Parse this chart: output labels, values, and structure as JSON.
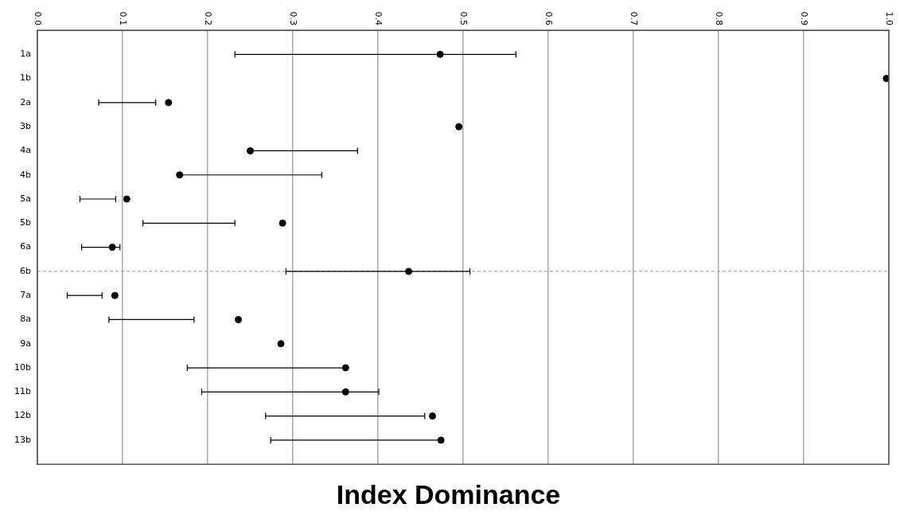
{
  "chart_data": {
    "type": "scatter",
    "title": "Index Dominance",
    "categories": [
      "1a",
      "1b",
      "2a",
      "3b",
      "4a",
      "4b",
      "5a",
      "5b",
      "6a",
      "6b",
      "7a",
      "8a",
      "9a",
      "10b",
      "11b",
      "12b",
      "13b"
    ],
    "series": [
      {
        "color": "#000000",
        "values": [
          0.473,
          0.997,
          0.154,
          0.495,
          0.25,
          0.167,
          0.105,
          0.288,
          0.088,
          0.436,
          0.091,
          0.236,
          0.286,
          0.362,
          0.362,
          0.464,
          0.474
        ],
        "errors": [
          [
            0.232,
            0.562
          ],
          null,
          [
            0.072,
            0.139
          ],
          null,
          [
            0.251,
            0.376
          ],
          [
            0.168,
            0.334
          ],
          [
            0.05,
            0.092
          ],
          [
            0.124,
            0.232
          ],
          [
            0.052,
            0.097
          ],
          [
            0.292,
            0.508
          ],
          [
            0.035,
            0.076
          ],
          [
            0.084,
            0.184
          ],
          null,
          [
            0.176,
            0.362
          ],
          [
            0.193,
            0.401
          ],
          [
            0.268,
            0.455
          ],
          [
            0.274,
            0.474
          ]
        ]
      }
    ],
    "orientation": "horizontal",
    "xlim": [
      0,
      1
    ],
    "xticks": [
      {
        "value": 0,
        "label": "0.0"
      },
      {
        "value": 0.1,
        "label": "0.1"
      },
      {
        "value": 0.2,
        "label": "0.2"
      },
      {
        "value": 0.3,
        "label": "0.3"
      },
      {
        "value": 0.4,
        "label": "0.4"
      },
      {
        "value": 0.5,
        "label": "0.5"
      },
      {
        "value": 0.6,
        "label": "0.6"
      },
      {
        "value": 0.7,
        "label": "0.7"
      },
      {
        "value": 0.8,
        "label": "0.8"
      },
      {
        "value": 0.9,
        "label": "0.9"
      },
      {
        "value": 1,
        "label": "1.0"
      }
    ],
    "ref_lines": [
      {
        "axis": "y",
        "value": "6b",
        "color": "#999999",
        "line_style": "dashed"
      }
    ],
    "grid": "x",
    "legend": false,
    "marker": "circle"
  }
}
